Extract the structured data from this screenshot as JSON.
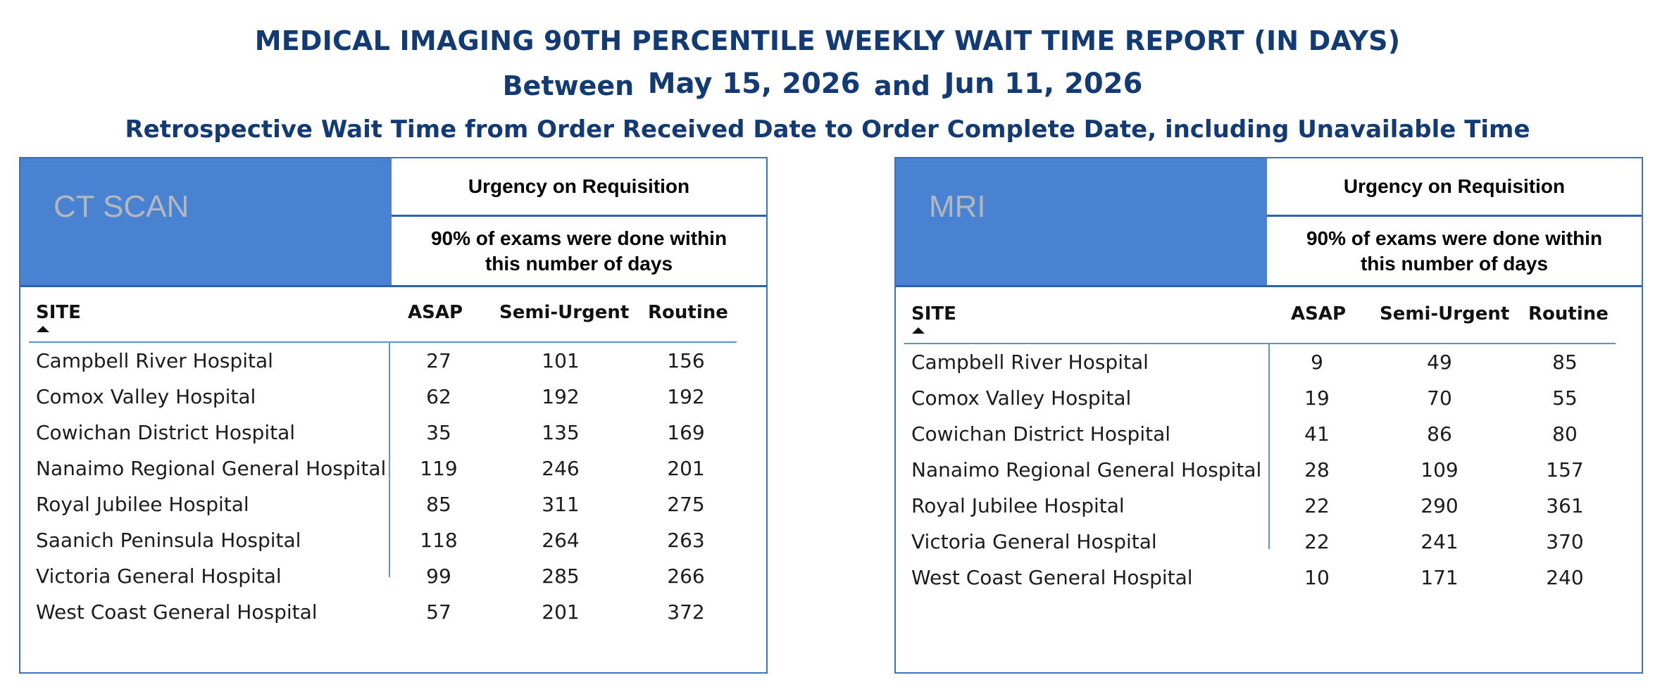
{
  "report": {
    "title": "MEDICAL IMAGING 90TH PERCENTILE WEEKLY WAIT TIME REPORT (IN DAYS)",
    "between_word": "Between",
    "start_date": "May 15, 2026",
    "and_word": "and",
    "end_date": "Jun 11, 2026",
    "subtitle": "Retrospective Wait Time from Order Received Date to Order Complete Date, including Unavailable Time"
  },
  "panels": {
    "ct": {
      "modality": "CT SCAN",
      "urgency_header": "Urgency on Requisition",
      "percentile_note": "90% of exams were done within\nthis number of days",
      "columns": [
        "SITE",
        "ASAP",
        "Semi-Urgent",
        "Routine"
      ],
      "rows": [
        {
          "site": "Campbell River Hospital",
          "asap": "27",
          "semi": "101",
          "routine": "156"
        },
        {
          "site": "Comox Valley Hospital",
          "asap": "62",
          "semi": "192",
          "routine": "192"
        },
        {
          "site": "Cowichan District Hospital",
          "asap": "35",
          "semi": "135",
          "routine": "169"
        },
        {
          "site": "Nanaimo Regional General Hospital",
          "asap": "119",
          "semi": "246",
          "routine": "201"
        },
        {
          "site": "Royal Jubilee Hospital",
          "asap": "85",
          "semi": "311",
          "routine": "275"
        },
        {
          "site": "Saanich Peninsula Hospital",
          "asap": "118",
          "semi": "264",
          "routine": "263"
        },
        {
          "site": "Victoria General Hospital",
          "asap": "99",
          "semi": "285",
          "routine": "266"
        },
        {
          "site": "West Coast General Hospital",
          "asap": "57",
          "semi": "201",
          "routine": "372"
        }
      ]
    },
    "mri": {
      "modality": "MRI",
      "urgency_header": "Urgency on Requisition",
      "percentile_note": "90% of exams were done within\nthis number of days",
      "columns": [
        "SITE",
        "ASAP",
        "Semi-Urgent",
        "Routine"
      ],
      "rows": [
        {
          "site": "Campbell River Hospital",
          "asap": "9",
          "semi": "49",
          "routine": "85"
        },
        {
          "site": "Comox Valley Hospital",
          "asap": "19",
          "semi": "70",
          "routine": "55"
        },
        {
          "site": "Cowichan District Hospital",
          "asap": "41",
          "semi": "86",
          "routine": "80"
        },
        {
          "site": "Nanaimo Regional General Hospital",
          "asap": "28",
          "semi": "109",
          "routine": "157"
        },
        {
          "site": "Royal Jubilee Hospital",
          "asap": "22",
          "semi": "290",
          "routine": "361"
        },
        {
          "site": "Victoria General Hospital",
          "asap": "22",
          "semi": "241",
          "routine": "370"
        },
        {
          "site": "West Coast General Hospital",
          "asap": "10",
          "semi": "171",
          "routine": "240"
        }
      ]
    }
  },
  "colors": {
    "title": "#123b75",
    "modality_fill": "#4a82d2",
    "modality_text": "#b3b7bd",
    "border": "#3b72c4"
  }
}
